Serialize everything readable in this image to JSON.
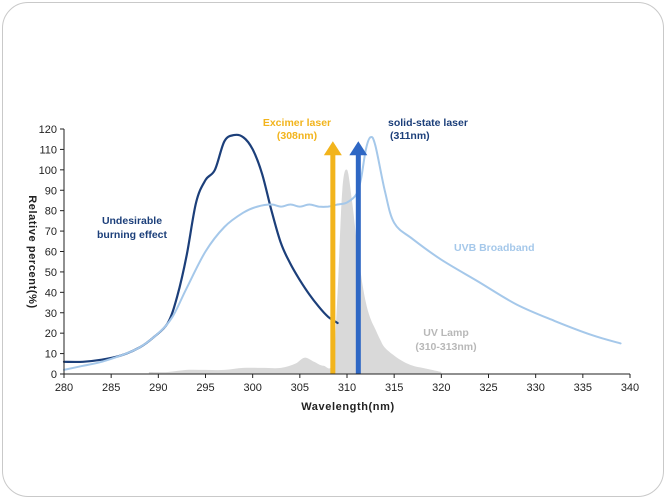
{
  "chart_data": {
    "type": "line",
    "xlabel": "Wavelength(nm)",
    "ylabel": "Relative percent(%)",
    "xlim": [
      280,
      340
    ],
    "ylim": [
      0,
      120
    ],
    "x_ticks": [
      280,
      285,
      290,
      295,
      300,
      305,
      310,
      315,
      320,
      325,
      330,
      335,
      340
    ],
    "y_ticks": [
      0,
      10,
      20,
      30,
      40,
      50,
      60,
      70,
      80,
      90,
      100,
      110,
      120
    ],
    "grid": false,
    "series": [
      {
        "name": "Undesirable burning effect",
        "color": "#1c3f7a",
        "kind": "line",
        "x": [
          280,
          282,
          284,
          286,
          288,
          289.5,
          291,
          292,
          293,
          294,
          295,
          296,
          297,
          298,
          299,
          300,
          301,
          302,
          303,
          304,
          305,
          306,
          307,
          308,
          309
        ],
        "y": [
          6,
          6,
          7,
          9,
          13,
          18,
          25,
          38,
          58,
          84,
          95,
          100,
          114,
          117,
          116,
          110,
          98,
          80,
          64,
          54,
          46,
          39,
          33,
          28,
          25
        ]
      },
      {
        "name": "UVB Broadband",
        "color": "#a5c8ea",
        "kind": "line",
        "x": [
          280,
          282,
          284,
          286,
          288,
          290,
          291.5,
          293,
          295,
          297,
          299,
          300.5,
          302,
          303,
          304,
          305,
          306,
          307,
          308,
          309,
          310,
          311,
          311.5,
          312,
          312.5,
          313,
          314,
          315,
          317,
          320,
          324,
          328,
          332,
          336,
          339
        ],
        "y": [
          2,
          4,
          6,
          9,
          13,
          20,
          28,
          42,
          60,
          72,
          79,
          82,
          83,
          82,
          83,
          82,
          83,
          82,
          82,
          83,
          84,
          88,
          96,
          110,
          116,
          112,
          90,
          74,
          66,
          56,
          45,
          34,
          26,
          19,
          15
        ]
      },
      {
        "name": "UV Lamp (310-313nm)",
        "color": "#d9d9d9",
        "kind": "area",
        "x": [
          289,
          291,
          293,
          295,
          297,
          299,
          301,
          303,
          304.5,
          305.5,
          306.5,
          307.5,
          308.5,
          309,
          309.5,
          310,
          310.5,
          311,
          311.5,
          312,
          312.5,
          313,
          313.5,
          314,
          315,
          316,
          317,
          318,
          319,
          320
        ],
        "y": [
          1,
          1,
          2,
          2,
          2,
          3,
          3,
          3,
          5,
          8,
          6,
          4,
          6,
          40,
          90,
          100,
          86,
          66,
          48,
          35,
          27,
          22,
          17,
          13,
          9,
          6,
          4,
          3,
          2,
          1
        ]
      }
    ],
    "markers": [
      {
        "name": "Excimer laser",
        "sub": "(308nm)",
        "x": 308.5,
        "y_top": 114,
        "color": "#f2b41c"
      },
      {
        "name": "solid-state laser",
        "sub": "(311nm)",
        "x": 311.2,
        "y_top": 114,
        "color": "#2e67c4"
      }
    ],
    "annotations": {
      "burning_line1": "Undesirable",
      "burning_line2": "burning effect",
      "uvb": "UVB Broadband",
      "lamp_line1": "UV Lamp",
      "lamp_line2": "(310-313nm)"
    }
  }
}
